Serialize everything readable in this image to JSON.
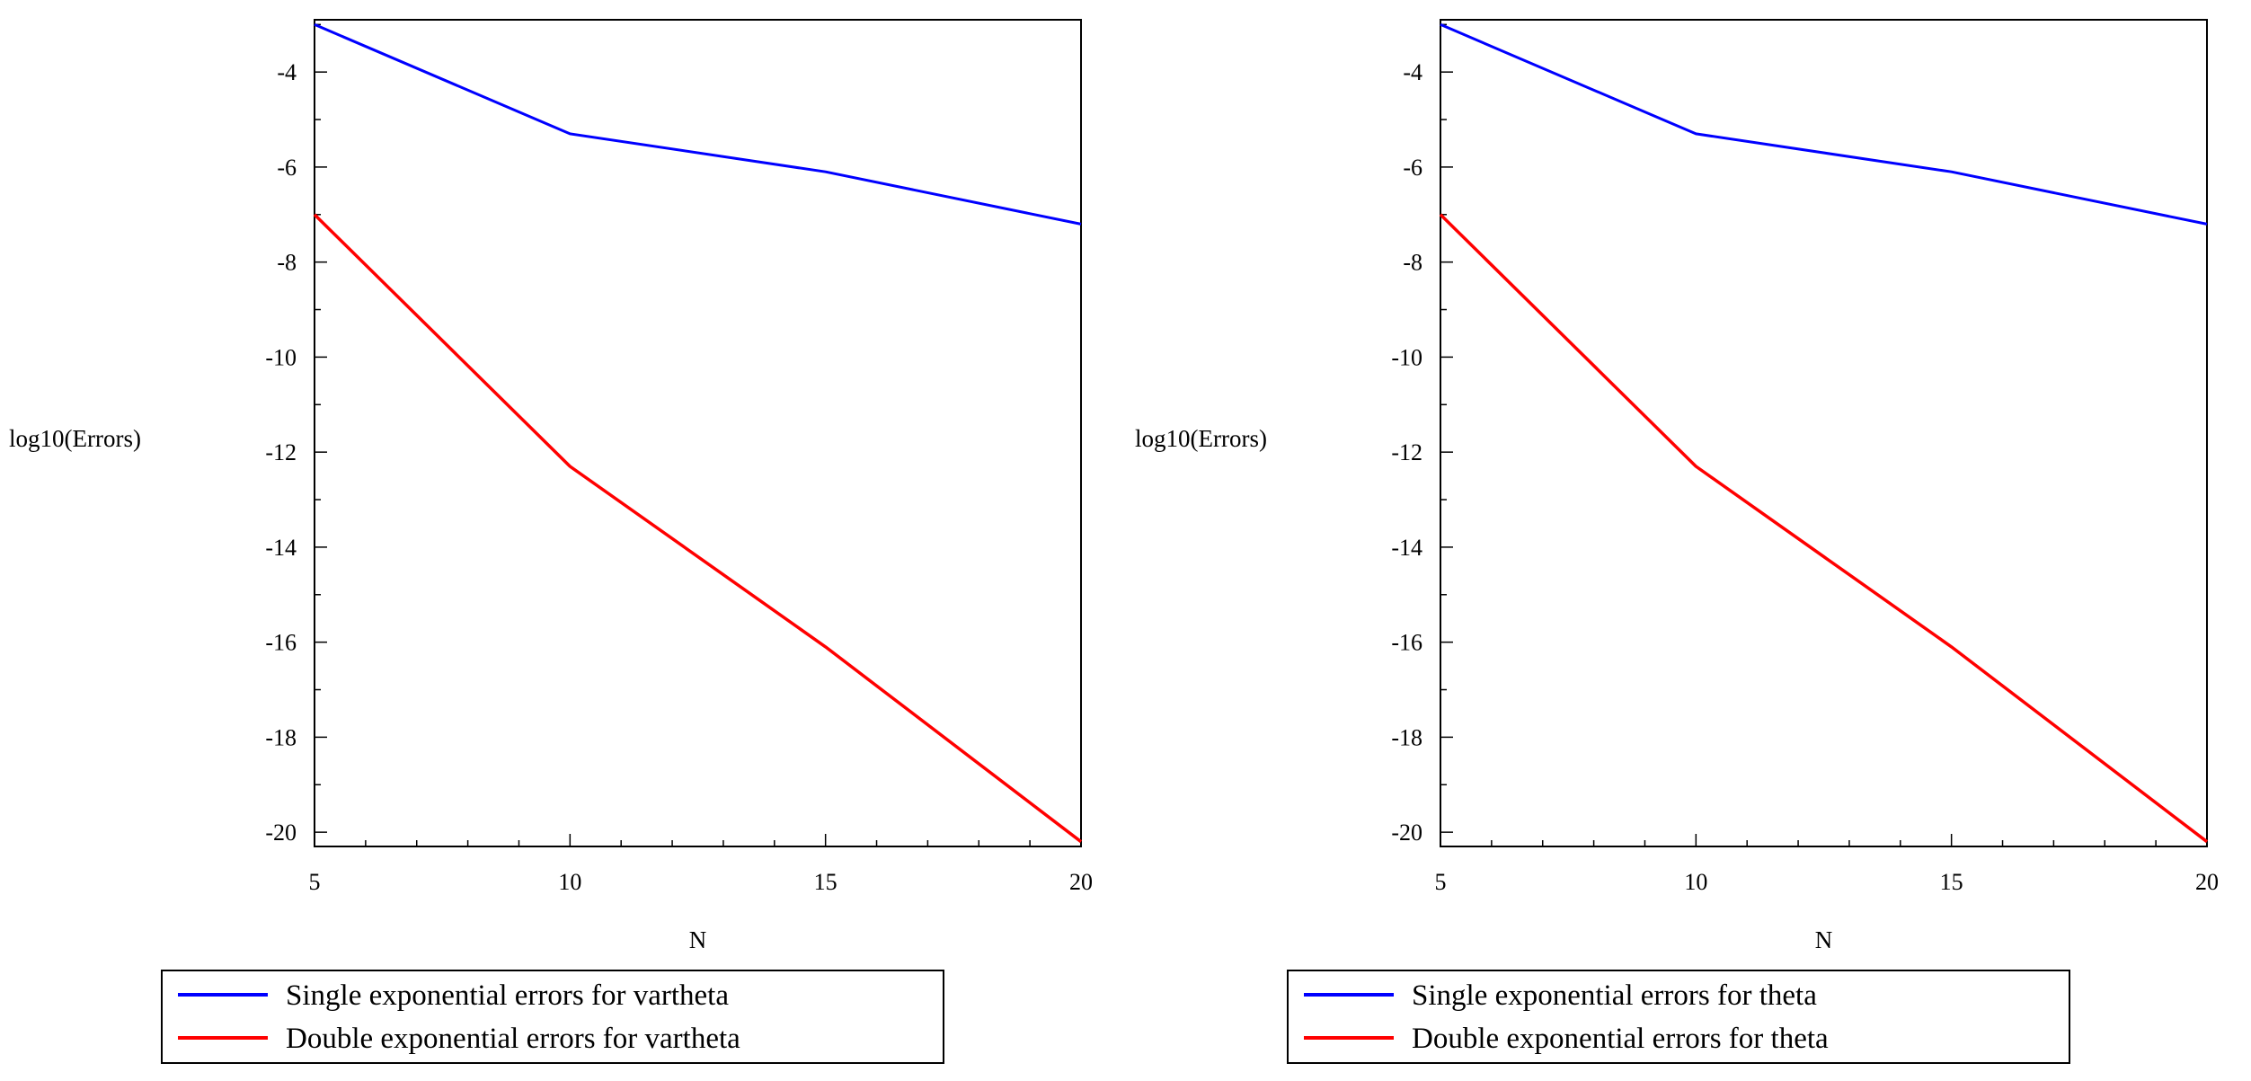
{
  "chart_data": [
    {
      "type": "line",
      "x": [
        5,
        10,
        15,
        20
      ],
      "series": [
        {
          "name": "Single exponential errors for vartheta",
          "color": "#0000ff",
          "values": [
            -3.0,
            -5.3,
            -6.1,
            -7.2
          ]
        },
        {
          "name": "Double exponential errors for vartheta",
          "color": "#ff0000",
          "values": [
            -7.0,
            -12.3,
            -16.1,
            -20.2
          ]
        }
      ],
      "xlabel": "N",
      "ylabel": "log10(Errors)",
      "xlim": [
        5,
        20
      ],
      "ylim": [
        -20.3,
        -2.9
      ],
      "xticks": [
        5,
        10,
        15,
        20
      ],
      "yticks": [
        -4,
        -6,
        -8,
        -10,
        -12,
        -14,
        -16,
        -18,
        -20
      ],
      "xtick_labels": [
        "5",
        "10",
        "15",
        "20"
      ],
      "ytick_labels": [
        "-4",
        "-6",
        "-8",
        "-10",
        "-12",
        "-14",
        "-16",
        "-18",
        "-20"
      ],
      "legend_position": "bottom"
    },
    {
      "type": "line",
      "x": [
        5,
        10,
        15,
        20
      ],
      "series": [
        {
          "name": "Single exponential errors for theta",
          "color": "#0000ff",
          "values": [
            -3.0,
            -5.3,
            -6.1,
            -7.2
          ]
        },
        {
          "name": "Double exponential errors for  theta",
          "color": "#ff0000",
          "values": [
            -7.0,
            -12.3,
            -16.1,
            -20.2
          ]
        }
      ],
      "xlabel": "N",
      "ylabel": "log10(Errors)",
      "xlim": [
        5,
        20
      ],
      "ylim": [
        -20.3,
        -2.9
      ],
      "xticks": [
        5,
        10,
        15,
        20
      ],
      "yticks": [
        -4,
        -6,
        -8,
        -10,
        -12,
        -14,
        -16,
        -18,
        -20
      ],
      "xtick_labels": [
        "5",
        "10",
        "15",
        "20"
      ],
      "ytick_labels": [
        "-4",
        "-6",
        "-8",
        "-10",
        "-12",
        "-14",
        "-16",
        "-18",
        "-20"
      ],
      "legend_position": "bottom"
    }
  ]
}
